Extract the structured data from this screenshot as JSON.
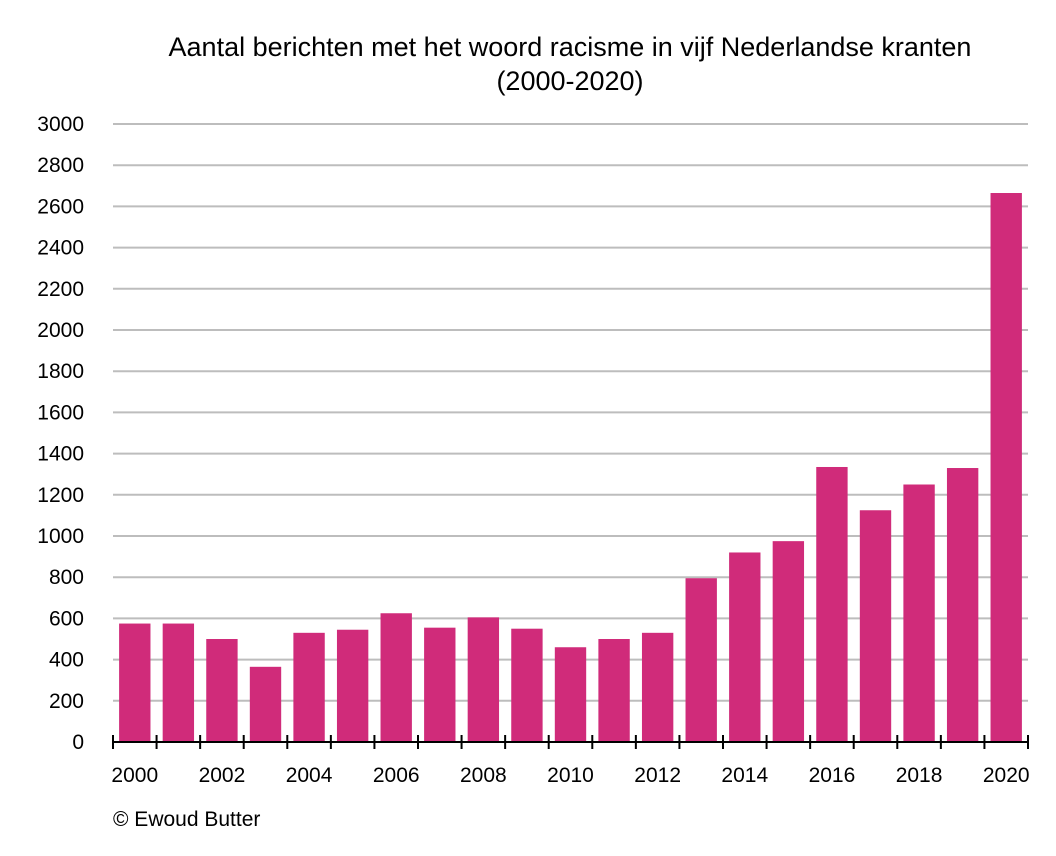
{
  "chart_data": {
    "type": "bar",
    "title_lines": [
      "Aantal berichten met het woord racisme in vijf Nederlandse kranten",
      "(2000-2020)"
    ],
    "categories": [
      "2000",
      "2001",
      "2002",
      "2003",
      "2004",
      "2005",
      "2006",
      "2007",
      "2008",
      "2009",
      "2010",
      "2011",
      "2012",
      "2013",
      "2014",
      "2015",
      "2016",
      "2017",
      "2018",
      "2019",
      "2020"
    ],
    "values": [
      575,
      575,
      500,
      365,
      530,
      545,
      625,
      555,
      605,
      550,
      460,
      500,
      530,
      795,
      920,
      975,
      1335,
      1125,
      1250,
      1330,
      2665
    ],
    "x_tick_labels": [
      "2000",
      "2002",
      "2004",
      "2006",
      "2008",
      "2010",
      "2012",
      "2014",
      "2016",
      "2018",
      "2020"
    ],
    "y_ticks": [
      0,
      200,
      400,
      600,
      800,
      1000,
      1200,
      1400,
      1600,
      1800,
      2000,
      2200,
      2400,
      2600,
      2800,
      3000
    ],
    "ylim": [
      0,
      3000
    ],
    "bar_color": "#d02b7a",
    "grid": true,
    "legend": "none",
    "xlabel": "",
    "ylabel": ""
  },
  "credit": "© Ewoud Butter"
}
